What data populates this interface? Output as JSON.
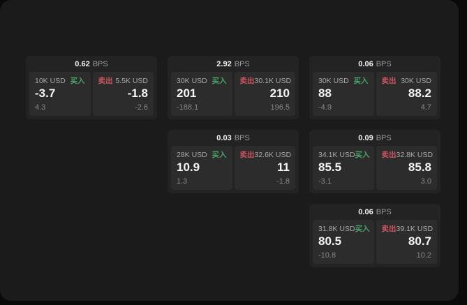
{
  "labels": {
    "buy": "买入",
    "sell": "卖出",
    "bps_unit": "BPS"
  },
  "colors": {
    "buy_green": "#4aa368",
    "sell_red": "#cb5663",
    "surface": "#1b1b1b",
    "card": "#232323",
    "panel": "#2c2c2c"
  },
  "cards": [
    {
      "col": 1,
      "row": 1,
      "bps": "0.62",
      "buy": {
        "amount": "10K USD",
        "price": "-3.7",
        "delta": "4.3"
      },
      "sell": {
        "amount": "5.5K USD",
        "price": "-1.8",
        "delta": "-2.6"
      }
    },
    {
      "col": 2,
      "row": 1,
      "bps": "2.92",
      "buy": {
        "amount": "30K USD",
        "price": "201",
        "delta": "-188.1"
      },
      "sell": {
        "amount": "30.1K USD",
        "price": "210",
        "delta": "196.5"
      }
    },
    {
      "col": 3,
      "row": 1,
      "bps": "0.06",
      "buy": {
        "amount": "30K USD",
        "price": "88",
        "delta": "-4.9"
      },
      "sell": {
        "amount": "30K USD",
        "price": "88.2",
        "delta": "4.7"
      }
    },
    {
      "col": 2,
      "row": 2,
      "bps": "0.03",
      "buy": {
        "amount": "28K USD",
        "price": "10.9",
        "delta": "1.3"
      },
      "sell": {
        "amount": "32.6K USD",
        "price": "11",
        "delta": "-1.8"
      }
    },
    {
      "col": 3,
      "row": 2,
      "bps": "0.09",
      "buy": {
        "amount": "34.1K USD",
        "price": "85.5",
        "delta": "-3.1"
      },
      "sell": {
        "amount": "32.8K USD",
        "price": "85.8",
        "delta": "3.0"
      }
    },
    {
      "col": 3,
      "row": 3,
      "bps": "0.06",
      "buy": {
        "amount": "31.8K USD",
        "price": "80.5",
        "delta": "-10.8"
      },
      "sell": {
        "amount": "39.1K USD",
        "price": "80.7",
        "delta": "10.2"
      }
    }
  ]
}
